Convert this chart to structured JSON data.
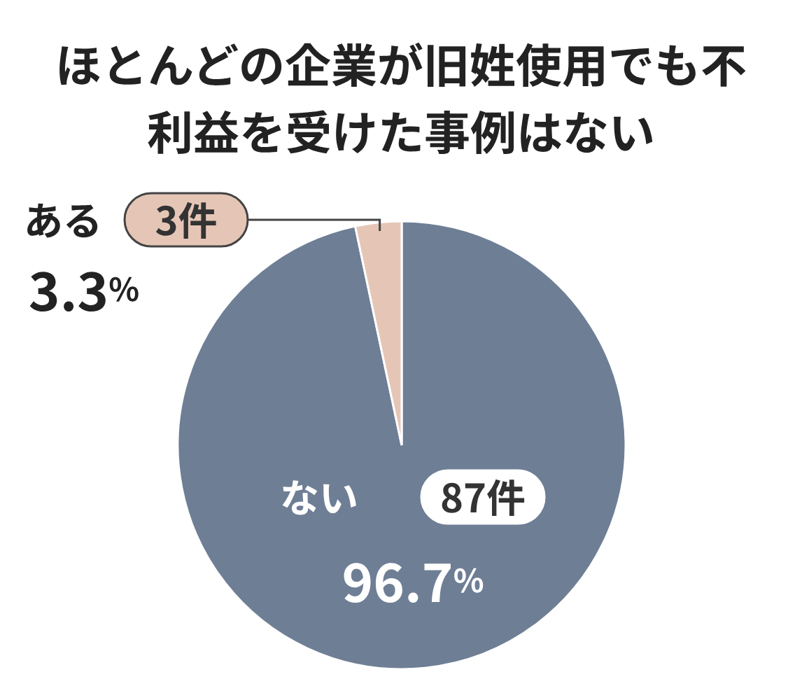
{
  "chart_data": {
    "type": "pie",
    "title": "ほとんどの企業が旧姓使用でも不利益を受けた事例はない",
    "categories": [
      "ない",
      "ある"
    ],
    "values": [
      87,
      3
    ],
    "value_labels": [
      "87件",
      "3件"
    ],
    "colors": [
      "#6e7e95",
      "#e5c6b6"
    ],
    "annotations": [
      "96.7%",
      "3.3%"
    ]
  }
}
